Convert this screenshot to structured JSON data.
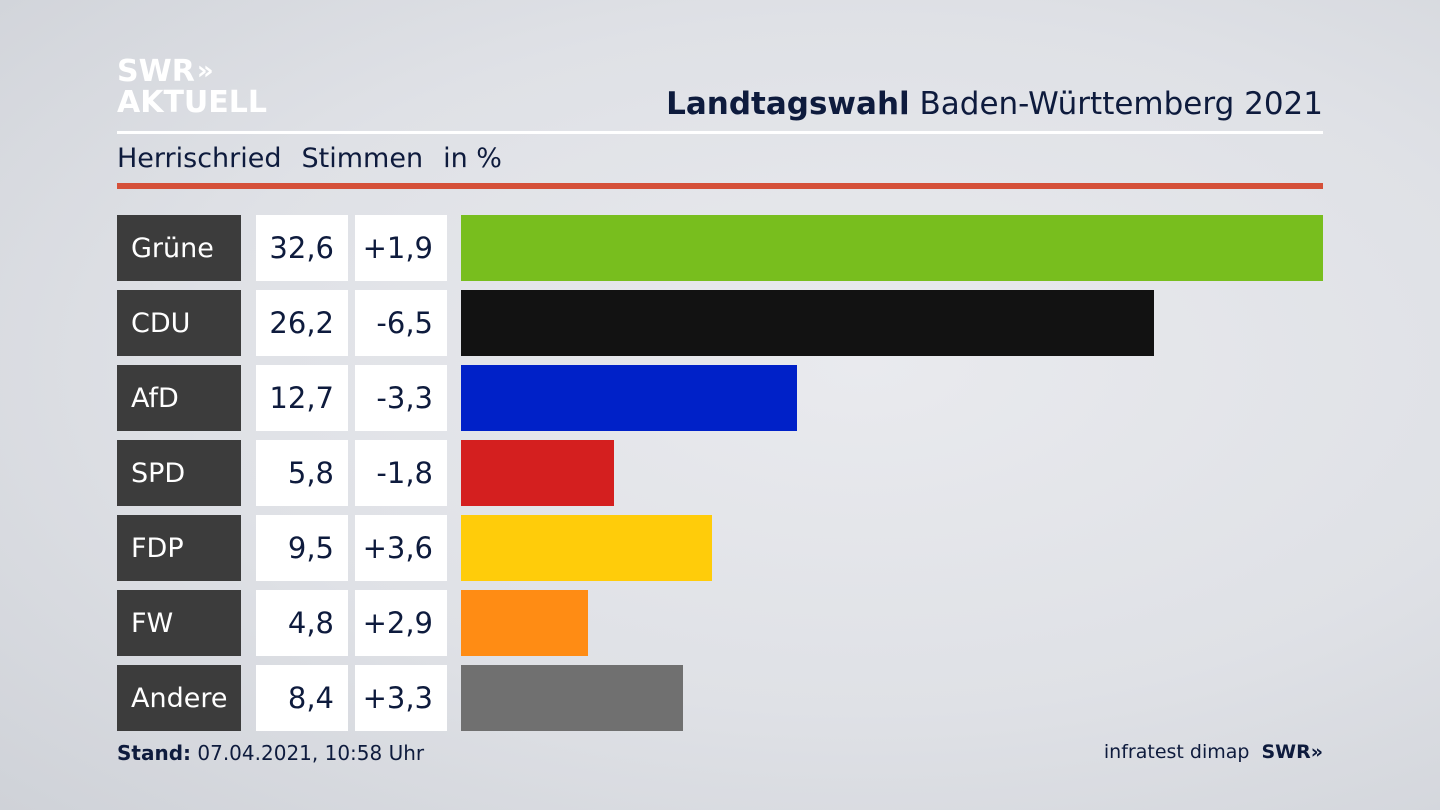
{
  "logo": {
    "line1": "SWR",
    "chevrons": "»",
    "line2": "AKTUELL"
  },
  "header": {
    "title_bold": "Landtagswahl",
    "title_rest": "Baden-Württemberg 2021",
    "location": "Herrischried",
    "measure": "Stimmen",
    "unit": "in %"
  },
  "colors": {
    "accent_red": "#d55039",
    "label_bg": "#3c3c3c"
  },
  "chart_data": {
    "type": "bar",
    "orientation": "horizontal",
    "categories": [
      "Grüne",
      "CDU",
      "AfD",
      "SPD",
      "FDP",
      "FW",
      "Andere"
    ],
    "values": [
      32.6,
      26.2,
      12.7,
      5.8,
      9.5,
      4.8,
      8.4
    ],
    "value_labels": [
      "32,6",
      "26,2",
      "12,7",
      "5,8",
      "9,5",
      "4,8",
      "8,4"
    ],
    "changes": [
      "+1,9",
      "-6,5",
      "-3,3",
      "-1,8",
      "+3,6",
      "+2,9",
      "+3,3"
    ],
    "colors": [
      "#78be1e",
      "#121212",
      "#0021c8",
      "#d41f1f",
      "#ffcc0a",
      "#ff8c14",
      "#707070"
    ],
    "xlim": [
      0,
      32.6
    ]
  },
  "footer": {
    "stand_label": "Stand:",
    "stand_value": "07.04.2021, 10:58 Uhr",
    "source": "infratest dimap",
    "brand": "SWR»"
  }
}
